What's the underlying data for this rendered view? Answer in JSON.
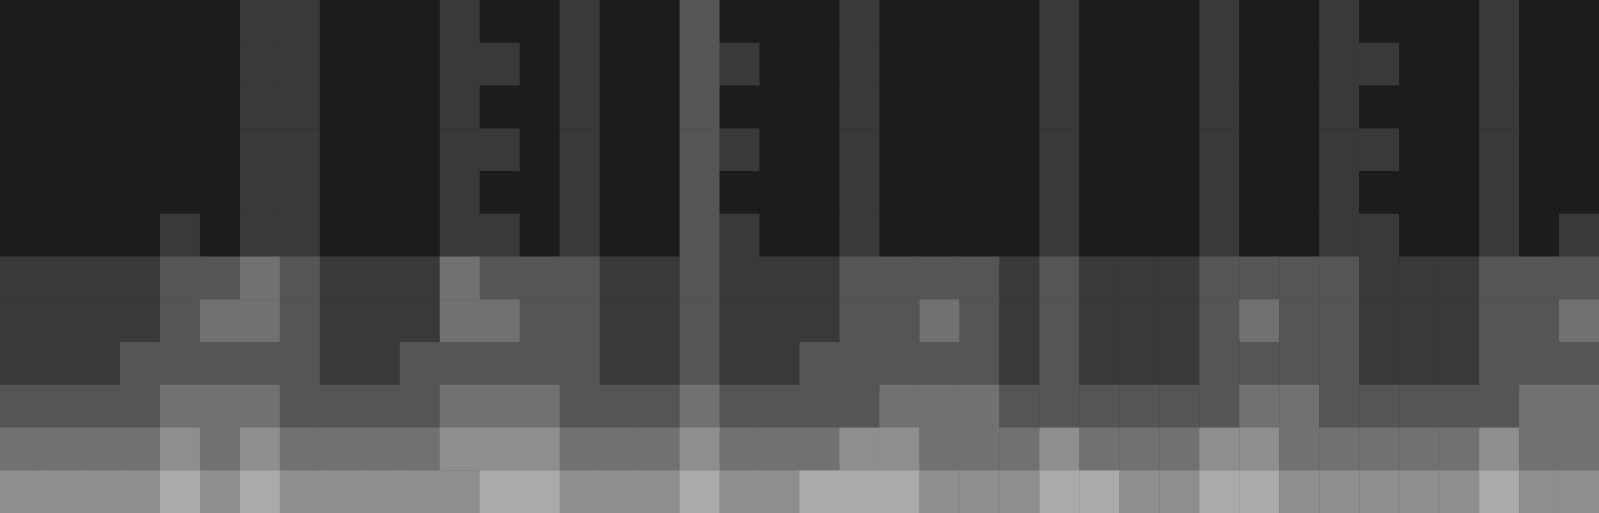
{
  "chart_data": {
    "type": "heatmap",
    "tick_labels": false,
    "color": "#ffffff",
    "color_range": [
      0,
      9
    ],
    "cells": [
      [
        1,
        1,
        1,
        1,
        1,
        1,
        2,
        2,
        1,
        1,
        1,
        2,
        1,
        1,
        2,
        1,
        1,
        3,
        1,
        1,
        1,
        2,
        1,
        1,
        1,
        1,
        2,
        1,
        1,
        1,
        2,
        1,
        1,
        2,
        1,
        1,
        1,
        2,
        1,
        1
      ],
      [
        1,
        1,
        1,
        1,
        1,
        1,
        2,
        2,
        1,
        1,
        1,
        2,
        2,
        1,
        2,
        1,
        1,
        3,
        2,
        1,
        1,
        2,
        1,
        1,
        1,
        1,
        2,
        1,
        1,
        1,
        2,
        1,
        1,
        2,
        2,
        1,
        1,
        2,
        1,
        1
      ],
      [
        1,
        1,
        1,
        1,
        1,
        1,
        2,
        2,
        1,
        1,
        1,
        2,
        1,
        1,
        2,
        1,
        1,
        3,
        1,
        1,
        1,
        2,
        1,
        1,
        1,
        1,
        2,
        1,
        1,
        1,
        2,
        1,
        1,
        2,
        1,
        1,
        1,
        2,
        1,
        1
      ],
      [
        1,
        1,
        1,
        1,
        1,
        1,
        2,
        2,
        1,
        1,
        1,
        2,
        2,
        1,
        2,
        1,
        1,
        3,
        2,
        1,
        1,
        2,
        1,
        1,
        1,
        1,
        2,
        1,
        1,
        1,
        2,
        1,
        1,
        2,
        2,
        1,
        1,
        2,
        1,
        1
      ],
      [
        1,
        1,
        1,
        1,
        1,
        1,
        2,
        2,
        1,
        1,
        1,
        2,
        1,
        1,
        2,
        1,
        1,
        3,
        1,
        1,
        1,
        2,
        1,
        1,
        1,
        1,
        2,
        1,
        1,
        1,
        2,
        1,
        1,
        2,
        1,
        1,
        1,
        2,
        1,
        1
      ],
      [
        1,
        1,
        1,
        1,
        2,
        1,
        2,
        2,
        1,
        1,
        1,
        2,
        2,
        1,
        2,
        1,
        1,
        3,
        2,
        1,
        1,
        2,
        1,
        1,
        1,
        1,
        2,
        1,
        1,
        1,
        2,
        1,
        1,
        2,
        2,
        1,
        1,
        2,
        1,
        2
      ],
      [
        2,
        2,
        2,
        2,
        3,
        3,
        4,
        3,
        2,
        2,
        2,
        4,
        3,
        3,
        3,
        2,
        2,
        3,
        2,
        2,
        2,
        3,
        3,
        3,
        3,
        2,
        3,
        2,
        2,
        2,
        3,
        3,
        3,
        3,
        2,
        2,
        2,
        3,
        3,
        3
      ],
      [
        2,
        2,
        2,
        2,
        3,
        4,
        4,
        3,
        2,
        2,
        2,
        4,
        4,
        3,
        3,
        2,
        2,
        3,
        2,
        2,
        2,
        3,
        3,
        4,
        3,
        2,
        3,
        2,
        2,
        2,
        3,
        4,
        3,
        3,
        2,
        2,
        2,
        3,
        3,
        4
      ],
      [
        2,
        2,
        2,
        3,
        3,
        3,
        3,
        3,
        2,
        2,
        3,
        3,
        3,
        3,
        3,
        2,
        2,
        3,
        2,
        2,
        3,
        3,
        3,
        3,
        3,
        2,
        3,
        2,
        2,
        2,
        3,
        3,
        3,
        3,
        2,
        2,
        2,
        3,
        3,
        3
      ],
      [
        3,
        3,
        3,
        3,
        4,
        4,
        4,
        3,
        3,
        3,
        3,
        4,
        4,
        4,
        3,
        3,
        3,
        4,
        3,
        3,
        3,
        3,
        4,
        4,
        4,
        3,
        3,
        3,
        3,
        3,
        3,
        4,
        4,
        3,
        3,
        3,
        3,
        3,
        4,
        4
      ],
      [
        4,
        4,
        4,
        4,
        5,
        4,
        5,
        4,
        4,
        4,
        4,
        5,
        5,
        5,
        4,
        4,
        4,
        5,
        4,
        4,
        4,
        5,
        5,
        4,
        4,
        4,
        5,
        4,
        4,
        4,
        5,
        5,
        4,
        4,
        4,
        4,
        4,
        5,
        4,
        4
      ],
      [
        5,
        5,
        5,
        5,
        6,
        5,
        6,
        5,
        5,
        5,
        5,
        5,
        6,
        6,
        5,
        5,
        5,
        6,
        5,
        5,
        6,
        6,
        6,
        5,
        5,
        5,
        6,
        6,
        5,
        5,
        6,
        6,
        5,
        5,
        5,
        5,
        5,
        6,
        5,
        5
      ]
    ]
  }
}
